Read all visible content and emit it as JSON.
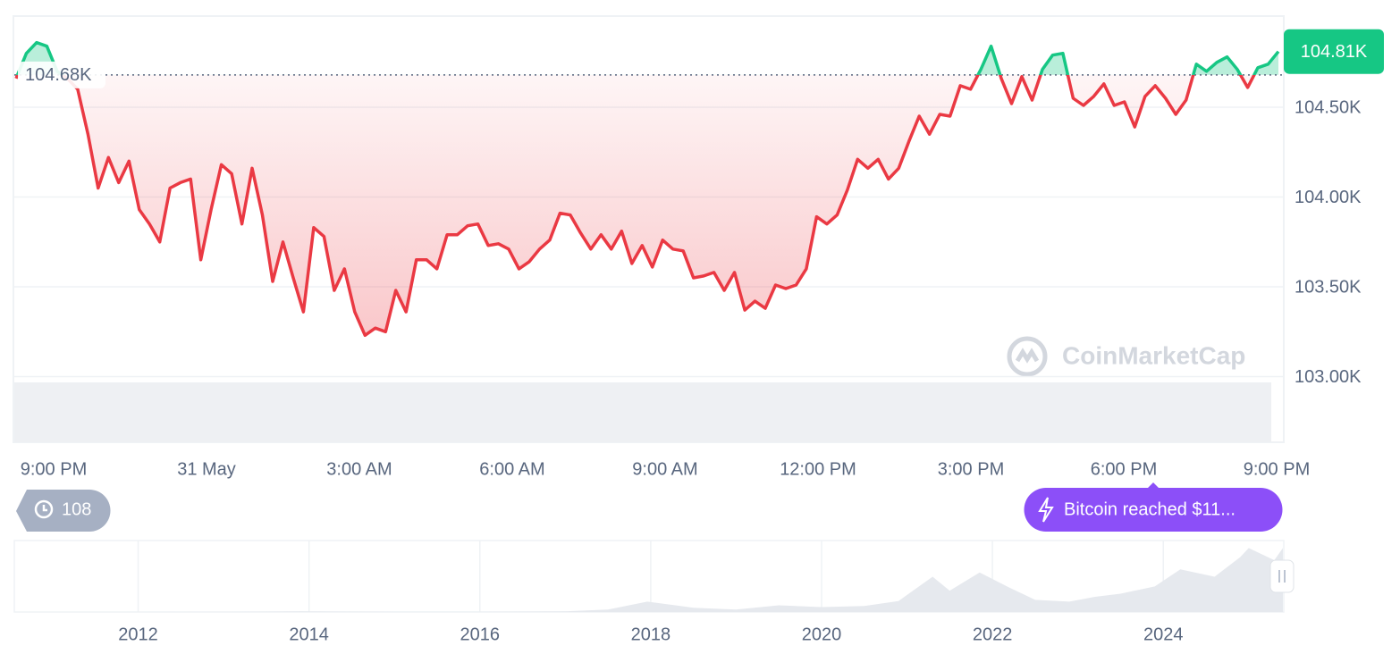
{
  "chart_data": [
    {
      "type": "line",
      "up_color": "#16c784",
      "down_color": "#ea3943",
      "ylim": [
        103.0,
        105.0
      ],
      "yticks": [
        {
          "value": 103.0,
          "label": "103.00K"
        },
        {
          "value": 103.5,
          "label": "103.50K"
        },
        {
          "value": 104.0,
          "label": "104.00K"
        },
        {
          "value": 104.5,
          "label": "104.50K"
        }
      ],
      "grid": true,
      "x_axis_labels": [
        "9:00 PM",
        "31 May",
        "3:00 AM",
        "6:00 AM",
        "9:00 AM",
        "12:00 PM",
        "3:00 PM",
        "6:00 PM",
        "9:00 PM"
      ],
      "reference": {
        "value": 104.68,
        "label": "104.68K"
      },
      "current": {
        "value": 104.81,
        "label": "104.81K"
      },
      "values": [
        104.66,
        104.8,
        104.86,
        104.84,
        104.7,
        104.66,
        104.6,
        104.35,
        104.05,
        104.22,
        104.08,
        104.2,
        103.93,
        103.85,
        103.75,
        104.05,
        104.08,
        104.1,
        103.65,
        103.93,
        104.18,
        104.13,
        103.85,
        104.16,
        103.9,
        103.53,
        103.75,
        103.55,
        103.36,
        103.83,
        103.78,
        103.48,
        103.6,
        103.36,
        103.23,
        103.27,
        103.25,
        103.48,
        103.36,
        103.65,
        103.65,
        103.6,
        103.79,
        103.79,
        103.84,
        103.85,
        103.73,
        103.74,
        103.71,
        103.6,
        103.64,
        103.71,
        103.76,
        103.91,
        103.9,
        103.8,
        103.71,
        103.79,
        103.71,
        103.81,
        103.63,
        103.73,
        103.61,
        103.76,
        103.71,
        103.7,
        103.55,
        103.56,
        103.58,
        103.48,
        103.58,
        103.37,
        103.42,
        103.38,
        103.51,
        103.49,
        103.51,
        103.6,
        103.89,
        103.85,
        103.9,
        104.04,
        104.21,
        104.16,
        104.21,
        104.1,
        104.16,
        104.31,
        104.45,
        104.35,
        104.46,
        104.45,
        104.62,
        104.6,
        104.71,
        104.84,
        104.66,
        104.52,
        104.67,
        104.54,
        104.71,
        104.79,
        104.8,
        104.55,
        104.51,
        104.56,
        104.63,
        104.51,
        104.53,
        104.39,
        104.56,
        104.62,
        104.55,
        104.46,
        104.54,
        104.74,
        104.7,
        104.75,
        104.78,
        104.71,
        104.61,
        104.72,
        104.74,
        104.81
      ],
      "watermark": "CoinMarketCap",
      "history_count": 108,
      "event": "Bitcoin reached $11..."
    },
    {
      "type": "area",
      "color": "#e6e9ee",
      "x": [
        2010.6,
        2013.0,
        2013.9,
        2015.0,
        2016.0,
        2017.0,
        2017.5,
        2017.96,
        2018.5,
        2019.0,
        2019.5,
        2020.0,
        2020.5,
        2020.9,
        2021.3,
        2021.5,
        2021.85,
        2022.2,
        2022.5,
        2022.9,
        2023.2,
        2023.5,
        2023.9,
        2024.2,
        2024.6,
        2024.9,
        2025.0,
        2025.3,
        2025.4
      ],
      "values": [
        0,
        0.1,
        1,
        0.3,
        0.4,
        1,
        4,
        17,
        7,
        4,
        11,
        8,
        10,
        18,
        58,
        35,
        65,
        40,
        20,
        17,
        25,
        30,
        42,
        70,
        58,
        90,
        105,
        85,
        105
      ],
      "xlim": [
        2010.55,
        2025.4
      ],
      "ylim": [
        0,
        110
      ],
      "xticks": [
        2012,
        2014,
        2016,
        2018,
        2020,
        2022,
        2024
      ]
    }
  ]
}
